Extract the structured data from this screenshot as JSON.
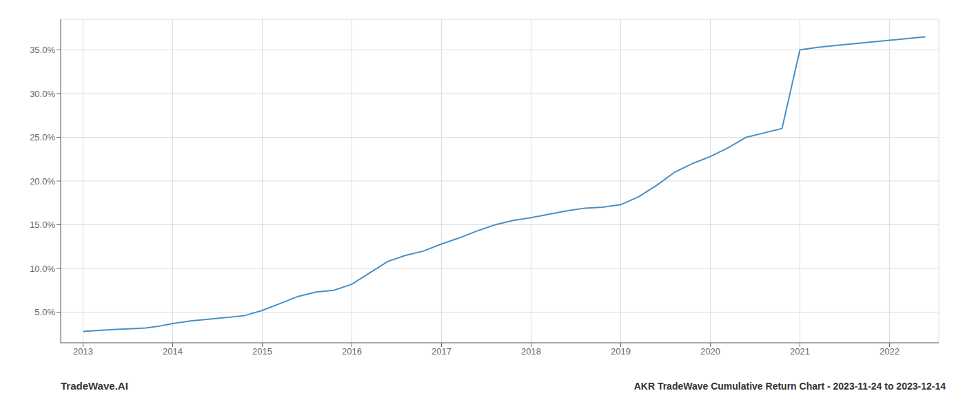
{
  "chart_data": {
    "type": "line",
    "title": "AKR TradeWave Cumulative Return Chart - 2023-11-24 to 2023-12-14",
    "annotations": [
      {
        "text": "TradeWave.AI"
      }
    ],
    "x": [
      2013.0,
      2013.15,
      2013.3,
      2013.5,
      2013.7,
      2013.85,
      2014.0,
      2014.2,
      2014.5,
      2014.8,
      2015.0,
      2015.2,
      2015.4,
      2015.6,
      2015.8,
      2016.0,
      2016.2,
      2016.4,
      2016.6,
      2016.8,
      2017.0,
      2017.2,
      2017.4,
      2017.6,
      2017.8,
      2018.0,
      2018.2,
      2018.4,
      2018.6,
      2018.8,
      2019.0,
      2019.2,
      2019.4,
      2019.6,
      2019.8,
      2020.0,
      2020.2,
      2020.4,
      2020.6,
      2020.8,
      2021.0,
      2021.2,
      2021.4,
      2021.6,
      2021.8,
      2022.0,
      2022.2,
      2022.4
    ],
    "values": [
      2.8,
      2.9,
      3.0,
      3.1,
      3.2,
      3.4,
      3.7,
      4.0,
      4.3,
      4.6,
      5.2,
      6.0,
      6.8,
      7.3,
      7.5,
      8.2,
      9.5,
      10.8,
      11.5,
      12.0,
      12.8,
      13.5,
      14.3,
      15.0,
      15.5,
      15.8,
      16.2,
      16.6,
      16.9,
      17.0,
      17.3,
      18.2,
      19.5,
      21.0,
      22.0,
      22.8,
      23.8,
      25.0,
      25.5,
      26.0,
      35.0,
      35.3,
      35.5,
      35.7,
      35.9,
      36.1,
      36.3,
      36.5
    ],
    "color": "#4a8fc4",
    "xlim": [
      2012.75,
      2022.55
    ],
    "xticks": [
      2013,
      2014,
      2015,
      2016,
      2017,
      2018,
      2019,
      2020,
      2021,
      2022
    ],
    "ylim": [
      1.5,
      38.5
    ],
    "yticks": [
      {
        "value": 5.0,
        "label": "5.0%"
      },
      {
        "value": 10.0,
        "label": "10.0%"
      },
      {
        "value": 15.0,
        "label": "15.0%"
      },
      {
        "value": 20.0,
        "label": "20.0%"
      },
      {
        "value": 25.0,
        "label": "25.0%"
      },
      {
        "value": 30.0,
        "label": "30.0%"
      },
      {
        "value": 35.0,
        "label": "35.0%"
      }
    ],
    "grid": true
  }
}
